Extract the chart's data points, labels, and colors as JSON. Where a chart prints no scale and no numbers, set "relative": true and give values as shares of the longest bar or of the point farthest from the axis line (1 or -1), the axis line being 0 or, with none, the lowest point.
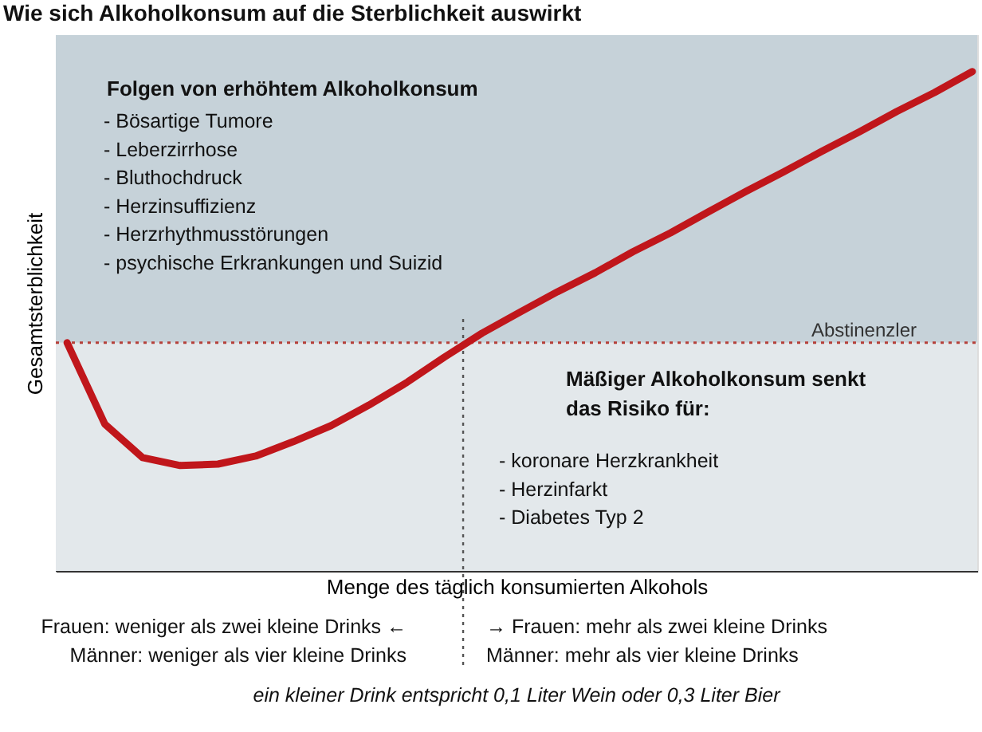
{
  "chart_data": {
    "type": "line",
    "relative": true,
    "title": "Wie sich Alkoholkonsum auf die Sterblichkeit auswirkt",
    "xlabel": "Menge des täglich konsumierten Alkohols",
    "ylabel": "Gesamtsterblichkeit",
    "categories": [
      null,
      null,
      null,
      null,
      null,
      null,
      null,
      null,
      null,
      null,
      null,
      null,
      null,
      null,
      null,
      null,
      null,
      null,
      null,
      null,
      null,
      null,
      null,
      null,
      null
    ],
    "series": [
      {
        "color": "#c0161b",
        "values": [
          0.457,
          0.294,
          0.227,
          0.211,
          0.214,
          0.23,
          0.259,
          0.291,
          0.332,
          0.377,
          0.428,
          0.476,
          0.518,
          0.559,
          0.597,
          0.639,
          0.677,
          0.719,
          0.76,
          0.799,
          0.84,
          0.879,
          0.92,
          0.958,
          1
        ]
      }
    ],
    "bands": [
      {
        "axis": "y",
        "from": 0,
        "to": 0.457,
        "color": "#e3e8eb"
      },
      {
        "axis": "y",
        "from": 0.457,
        "to": 1.073,
        "color": "#c6d2d9"
      }
    ],
    "ref_lines": [
      {
        "axis": "y",
        "value": 0.457,
        "label": "Abstinenzler",
        "color": "#b5403a",
        "line_style": "dotted"
      }
    ],
    "annotations": [
      "Folgen von erhöhtem Alkoholkonsum",
      "- Bösartige Tumore\n- Leberzirrhose\n- Bluthochdruck\n- Herzinsuffizienz\n- Herzrhythmusstörungen\n- psychische Erkrankungen und Suizid",
      "Mäßiger Alkoholkonsum senkt\ndas Risiko für:",
      "- koronare Herzkrankheit\n- Herzinfarkt\n- Diabetes Typ 2",
      "Frauen: weniger als zwei kleine Drinks ←\nMänner: weniger als vier kleine Drinks",
      "→ Frauen: mehr als zwei kleine Drinks\nMänner: mehr als vier kleine Drinks",
      "ein kleiner Drink entspricht 0,1 Liter Wein oder 0,3 Liter Bier"
    ],
    "grid": false,
    "marker": "none",
    "line_style": "solid"
  }
}
